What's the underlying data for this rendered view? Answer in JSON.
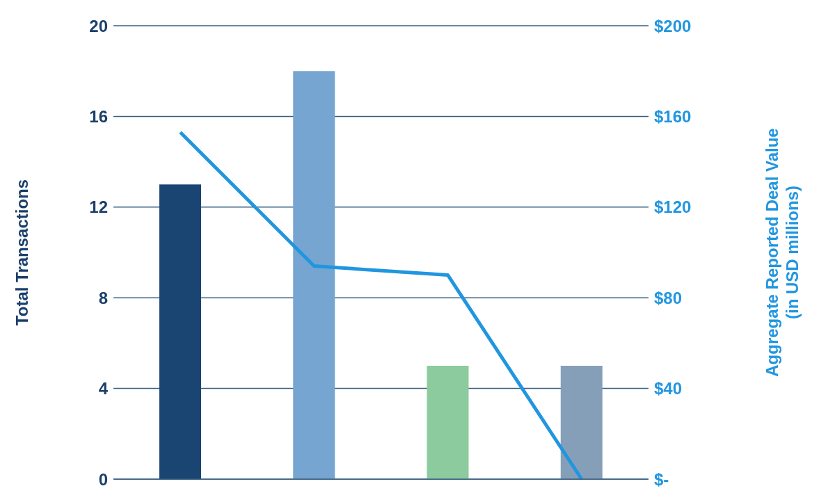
{
  "chart_data": {
    "type": "bar",
    "categories": [
      null,
      null,
      null,
      null
    ],
    "ylabel": "Total Transactions",
    "y2label": "Aggregate Reported Deal Value\n(in USD millions)",
    "series": [
      {
        "colors": [
          "#1a4472",
          "#76a5d1",
          "#8bcb9e",
          "#869fb9"
        ],
        "values": [
          13,
          18,
          5,
          5
        ]
      },
      {
        "type": "line",
        "axis": "y2",
        "color": "#2196e0",
        "values": [
          153,
          94,
          90,
          0
        ]
      }
    ],
    "ylim": [
      0,
      20
    ],
    "yticks": [
      0,
      4,
      8,
      12,
      16,
      20
    ],
    "y2lim": [
      0,
      200
    ],
    "y2ticks": [
      {
        "value": 0,
        "label": "$-"
      },
      {
        "value": 40,
        "label": "$40"
      },
      {
        "value": 80,
        "label": "$80"
      },
      {
        "value": 120,
        "label": "$120"
      },
      {
        "value": 160,
        "label": "$160"
      },
      {
        "value": 200,
        "label": "$200"
      }
    ],
    "grid": "y",
    "legend": false,
    "marker": "none",
    "line_style": "solid"
  }
}
